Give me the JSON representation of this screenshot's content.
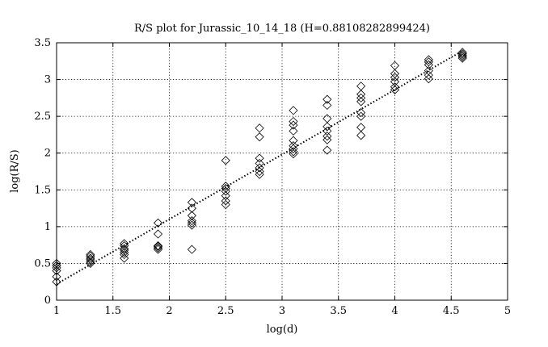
{
  "chart_data": {
    "type": "scatter",
    "title": "R/S plot for Jurassic_10_14_18 (H=0.88108282899424)",
    "xlabel": "log(d)",
    "ylabel": "log(R/S)",
    "xlim": [
      1,
      5
    ],
    "ylim": [
      0,
      3.5
    ],
    "xticks": [
      "1",
      "1.5",
      "2",
      "2.5",
      "3",
      "3.5",
      "4",
      "4.5",
      "5"
    ],
    "yticks": [
      "0",
      "0.5",
      "1",
      "1.5",
      "2",
      "2.5",
      "3",
      "3.5"
    ],
    "grid": true,
    "marker": "diamond",
    "series": [
      {
        "points": [
          [
            1.0,
            0.25
          ],
          [
            1.0,
            0.32
          ],
          [
            1.0,
            0.4
          ],
          [
            1.0,
            0.44
          ],
          [
            1.0,
            0.47
          ],
          [
            1.0,
            0.5
          ],
          [
            1.3,
            0.5
          ],
          [
            1.3,
            0.52
          ],
          [
            1.3,
            0.55
          ],
          [
            1.3,
            0.57
          ],
          [
            1.3,
            0.6
          ],
          [
            1.3,
            0.62
          ],
          [
            1.6,
            0.57
          ],
          [
            1.6,
            0.62
          ],
          [
            1.6,
            0.65
          ],
          [
            1.6,
            0.68
          ],
          [
            1.6,
            0.7
          ],
          [
            1.6,
            0.74
          ],
          [
            1.6,
            0.77
          ],
          [
            1.9,
            0.69
          ],
          [
            1.9,
            0.71
          ],
          [
            1.9,
            0.73
          ],
          [
            1.9,
            0.74
          ],
          [
            1.9,
            0.9
          ],
          [
            1.9,
            1.05
          ],
          [
            2.2,
            0.69
          ],
          [
            2.2,
            1.02
          ],
          [
            2.2,
            1.05
          ],
          [
            2.2,
            1.08
          ],
          [
            2.2,
            1.15
          ],
          [
            2.2,
            1.25
          ],
          [
            2.2,
            1.33
          ],
          [
            2.5,
            1.3
          ],
          [
            2.5,
            1.35
          ],
          [
            2.5,
            1.42
          ],
          [
            2.5,
            1.48
          ],
          [
            2.5,
            1.52
          ],
          [
            2.5,
            1.55
          ],
          [
            2.5,
            1.9
          ],
          [
            2.8,
            1.71
          ],
          [
            2.8,
            1.75
          ],
          [
            2.8,
            1.8
          ],
          [
            2.8,
            1.86
          ],
          [
            2.8,
            1.93
          ],
          [
            2.8,
            2.22
          ],
          [
            2.8,
            2.34
          ],
          [
            3.1,
            1.99
          ],
          [
            3.1,
            2.02
          ],
          [
            3.1,
            2.06
          ],
          [
            3.1,
            2.1
          ],
          [
            3.1,
            2.17
          ],
          [
            3.1,
            2.3
          ],
          [
            3.1,
            2.38
          ],
          [
            3.1,
            2.43
          ],
          [
            3.1,
            2.58
          ],
          [
            3.4,
            2.04
          ],
          [
            3.4,
            2.18
          ],
          [
            3.4,
            2.23
          ],
          [
            3.4,
            2.3
          ],
          [
            3.4,
            2.36
          ],
          [
            3.4,
            2.47
          ],
          [
            3.4,
            2.65
          ],
          [
            3.4,
            2.73
          ],
          [
            3.7,
            2.24
          ],
          [
            3.7,
            2.35
          ],
          [
            3.7,
            2.5
          ],
          [
            3.7,
            2.55
          ],
          [
            3.7,
            2.7
          ],
          [
            3.7,
            2.75
          ],
          [
            3.7,
            2.8
          ],
          [
            3.7,
            2.91
          ],
          [
            4.0,
            2.86
          ],
          [
            4.0,
            2.9
          ],
          [
            4.0,
            2.97
          ],
          [
            4.0,
            3.03
          ],
          [
            4.0,
            3.08
          ],
          [
            4.0,
            3.19
          ],
          [
            4.3,
            3.01
          ],
          [
            4.3,
            3.06
          ],
          [
            4.3,
            3.12
          ],
          [
            4.3,
            3.2
          ],
          [
            4.3,
            3.24
          ],
          [
            4.3,
            3.27
          ],
          [
            4.6,
            3.29
          ],
          [
            4.6,
            3.31
          ],
          [
            4.6,
            3.33
          ],
          [
            4.6,
            3.35
          ],
          [
            4.6,
            3.37
          ]
        ]
      }
    ],
    "fit_line": {
      "x": [
        1.0,
        4.6
      ],
      "y": [
        0.22,
        3.39
      ]
    }
  }
}
